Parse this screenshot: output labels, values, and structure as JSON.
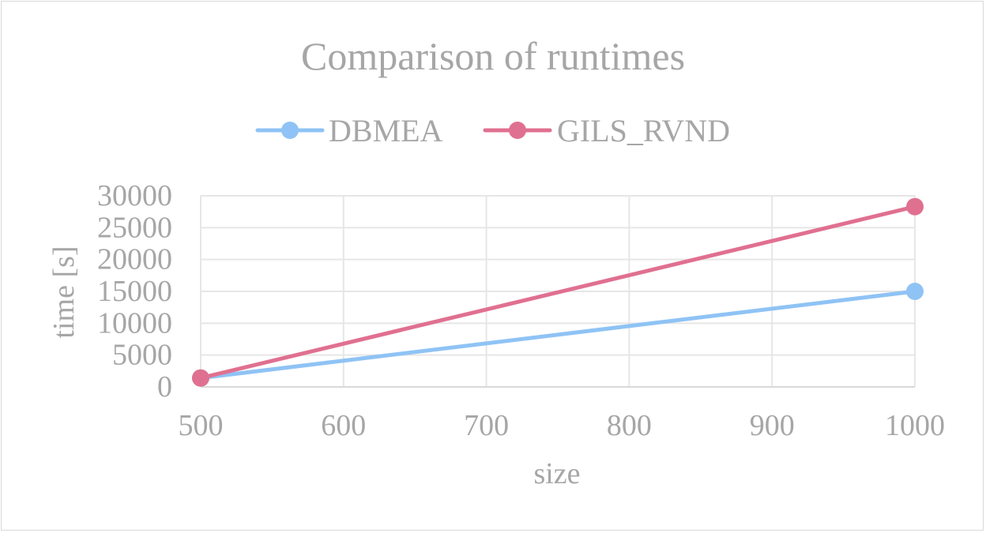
{
  "chart_data": {
    "type": "line",
    "title": "Comparison of runtimes",
    "xlabel": "size",
    "ylabel": "time [s]",
    "x": [
      500,
      1000
    ],
    "xlim": [
      500,
      1000
    ],
    "ylim": [
      0,
      30000
    ],
    "xticks": [
      "500",
      "600",
      "700",
      "800",
      "900",
      "1000"
    ],
    "yticks": [
      "0",
      "5000",
      "10000",
      "15000",
      "20000",
      "25000",
      "30000"
    ],
    "grid": true,
    "legend_position": "top",
    "series": [
      {
        "name": "DBMEA",
        "values": [
          1400,
          15000
        ],
        "color": "#8fc3f5"
      },
      {
        "name": "GILS_RVND",
        "values": [
          1400,
          28300
        ],
        "color": "#e07090"
      }
    ],
    "colors": {
      "text": "#a6a6a6",
      "grid": "#e6e6e6",
      "axis": "#d9d9d9"
    }
  }
}
